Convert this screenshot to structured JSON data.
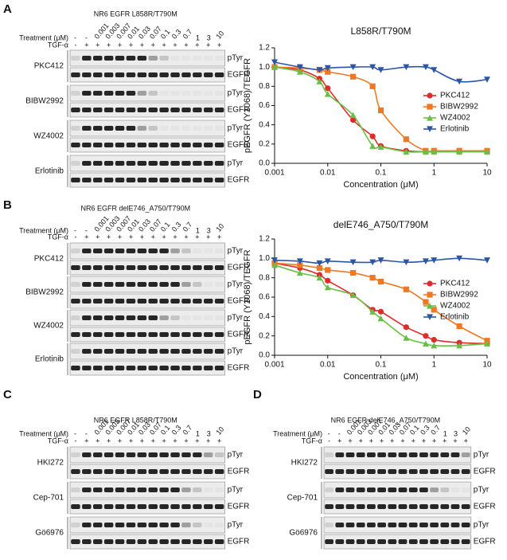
{
  "panels": [
    {
      "letter": "A",
      "blot": {
        "title": "NR6 EGFR L858R/T790M",
        "treatment_label": "Treatment (μM)",
        "tgf_label": "TGF-α",
        "treatment": [
          "-",
          "-",
          "0.001",
          "0.003",
          "0.007",
          "0.01",
          "0.03",
          "0.07",
          "0.1",
          "0.3",
          "0.7",
          "1",
          "3",
          "10"
        ],
        "tgf": [
          "-",
          "+",
          "+",
          "+",
          "+",
          "+",
          "+",
          "+",
          "+",
          "+",
          "+",
          "+",
          "+",
          "+"
        ],
        "rows": [
          {
            "drug": "PKC412",
            "bands": [
              "pTyr",
              "EGFR"
            ]
          },
          {
            "drug": "BIBW2992",
            "bands": [
              "pTyr",
              "EGFR"
            ]
          },
          {
            "drug": "WZ4002",
            "bands": [
              "pTyr",
              "EGFR"
            ]
          },
          {
            "drug": "Erlotinib",
            "bands": [
              "pTyr",
              "EGFR"
            ]
          }
        ]
      }
    },
    {
      "letter": "B",
      "blot": {
        "title": "NR6 EGFR delE746_A750/T790M",
        "treatment_label": "Treatment (μM)",
        "tgf_label": "TGF-α",
        "treatment": [
          "-",
          "-",
          "0.001",
          "0.003",
          "0.007",
          "0.01",
          "0.03",
          "0.07",
          "0.1",
          "0.3",
          "0.7",
          "1",
          "3",
          "10"
        ],
        "tgf": [
          "-",
          "+",
          "+",
          "+",
          "+",
          "+",
          "+",
          "+",
          "+",
          "+",
          "+",
          "+",
          "+",
          "+"
        ],
        "rows": [
          {
            "drug": "PKC412",
            "bands": [
              "pTyr",
              "EGFR"
            ]
          },
          {
            "drug": "BIBW2992",
            "bands": [
              "pTyr",
              "EGFR"
            ]
          },
          {
            "drug": "WZ4002",
            "bands": [
              "pTyr",
              "EGFR"
            ]
          },
          {
            "drug": "Erlotinib",
            "bands": [
              "pTyr",
              "EGFR"
            ]
          }
        ]
      }
    },
    {
      "letter": "C",
      "blot": {
        "title": "NR6 EGFR L858R/T790M",
        "treatment_label": "Treatment (μM)",
        "tgf_label": "TGF-α",
        "treatment": [
          "-",
          "-",
          "0.001",
          "0.003",
          "0.007",
          "0.01",
          "0.03",
          "0.07",
          "0.1",
          "0.3",
          "0.7",
          "1",
          "3",
          "10"
        ],
        "tgf": [
          "-",
          "+",
          "+",
          "+",
          "+",
          "+",
          "+",
          "+",
          "+",
          "+",
          "+",
          "+",
          "+",
          "+"
        ],
        "rows": [
          {
            "drug": "HKI272",
            "bands": [
              "pTyr",
              "EGFR"
            ]
          },
          {
            "drug": "Cep-701",
            "bands": [
              "pTyr",
              "EGFR"
            ]
          },
          {
            "drug": "Gö6976",
            "bands": [
              "pTyr",
              "EGFR"
            ]
          }
        ]
      }
    },
    {
      "letter": "D",
      "blot": {
        "title": "NR6 EGFR delE746_A750/T790M",
        "treatment_label": "Treatment (μM)",
        "tgf_label": "TGF-α",
        "treatment": [
          "-",
          "-",
          "0.001",
          "0.003",
          "0.007",
          "0.01",
          "0.03",
          "0.07",
          "0.1",
          "0.3",
          "0.7",
          "1",
          "3",
          "10"
        ],
        "tgf": [
          "-",
          "+",
          "+",
          "+",
          "+",
          "+",
          "+",
          "+",
          "+",
          "+",
          "+",
          "+",
          "+",
          "+"
        ],
        "rows": [
          {
            "drug": "HKI272",
            "bands": [
              "pTyr",
              "EGFR"
            ]
          },
          {
            "drug": "Cep-701",
            "bands": [
              "pTyr",
              "EGFR"
            ]
          },
          {
            "drug": "Gö6976",
            "bands": [
              "pTyr",
              "EGFR"
            ]
          }
        ]
      }
    }
  ],
  "chart_data": [
    {
      "type": "scatter",
      "title": "L858R/T790M",
      "x_label": "Concentration (μM)",
      "y_label": "pEGFR (Y1068)/TEGFR",
      "x": [
        0.001,
        0.003,
        0.007,
        0.01,
        0.03,
        0.07,
        0.1,
        0.3,
        0.7,
        1,
        3,
        10
      ],
      "xlog": true,
      "xlim": [
        0.001,
        10
      ],
      "xticks": [
        0.001,
        0.01,
        0.1,
        1,
        10
      ],
      "ylim": [
        0,
        1.2
      ],
      "yticks": [
        {
          "value": 0,
          "label": "0.0"
        },
        0.2,
        0.4,
        0.6,
        0.8,
        {
          "value": 1,
          "label": "1.0"
        },
        1.2
      ],
      "series": [
        {
          "name": "PKC412",
          "color": "#e02b2b",
          "marker": "circle",
          "values": [
            1.0,
            0.97,
            0.88,
            0.78,
            0.45,
            0.28,
            0.18,
            0.13,
            0.12,
            0.12,
            0.12,
            0.12
          ]
        },
        {
          "name": "BIBW2992",
          "color": "#f07823",
          "marker": "square",
          "values": [
            1.0,
            0.99,
            0.97,
            0.95,
            0.9,
            0.8,
            0.55,
            0.25,
            0.13,
            0.13,
            0.13,
            0.13
          ]
        },
        {
          "name": "WZ4002",
          "color": "#69bf45",
          "marker": "triangle-up",
          "values": [
            1.0,
            0.95,
            0.85,
            0.72,
            0.5,
            0.18,
            0.17,
            0.12,
            0.12,
            0.12,
            0.12,
            0.12
          ]
        },
        {
          "name": "Erlotinib",
          "color": "#2b55a6",
          "marker": "triangle-down",
          "values": [
            1.05,
            1.0,
            0.97,
            0.99,
            1.0,
            1.0,
            0.97,
            1.0,
            1.0,
            0.97,
            0.85,
            0.87
          ]
        }
      ]
    },
    {
      "type": "scatter",
      "title": "delE746_A750/T790M",
      "x_label": "Concentration (μM)",
      "y_label": "pEGFR (Y1068)/TEGFR",
      "x": [
        0.001,
        0.003,
        0.007,
        0.01,
        0.03,
        0.07,
        0.1,
        0.3,
        0.7,
        1,
        3,
        10
      ],
      "xlog": true,
      "xlim": [
        0.001,
        10
      ],
      "xticks": [
        0.001,
        0.01,
        0.1,
        1,
        10
      ],
      "ylim": [
        0,
        1.2
      ],
      "yticks": [
        {
          "value": 0,
          "label": "0.0"
        },
        0.2,
        0.4,
        0.6,
        0.8,
        {
          "value": 1,
          "label": "1.0"
        },
        1.2
      ],
      "series": [
        {
          "name": "PKC412",
          "color": "#e02b2b",
          "marker": "circle",
          "values": [
            0.95,
            0.9,
            0.83,
            0.77,
            0.62,
            0.47,
            0.45,
            0.29,
            0.2,
            0.16,
            0.13,
            0.12
          ]
        },
        {
          "name": "BIBW2992",
          "color": "#f07823",
          "marker": "square",
          "values": [
            0.95,
            0.93,
            0.9,
            0.88,
            0.85,
            0.8,
            0.76,
            0.68,
            0.55,
            0.47,
            0.3,
            0.15
          ]
        },
        {
          "name": "WZ4002",
          "color": "#69bf45",
          "marker": "triangle-up",
          "values": [
            0.93,
            0.85,
            0.8,
            0.7,
            0.62,
            0.45,
            0.38,
            0.18,
            0.12,
            0.1,
            0.1,
            0.12
          ]
        },
        {
          "name": "Erlotinib",
          "color": "#2b55a6",
          "marker": "triangle-down",
          "values": [
            0.98,
            0.97,
            0.95,
            0.97,
            0.96,
            0.96,
            0.98,
            0.96,
            0.97,
            0.98,
            1.0,
            0.98
          ]
        }
      ]
    }
  ]
}
